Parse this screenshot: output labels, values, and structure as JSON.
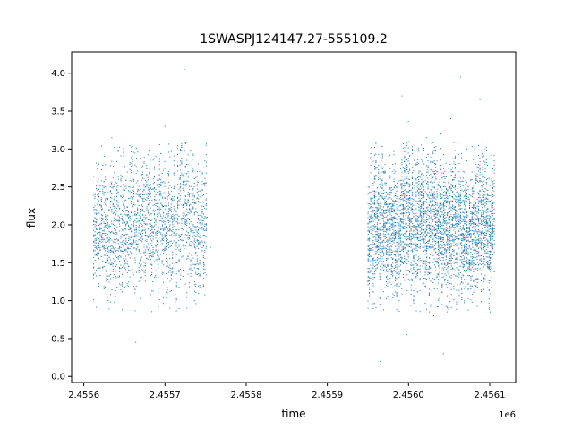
{
  "chart_data": {
    "type": "scatter",
    "title": "1SWASPJ124147.27-555109.2",
    "xlabel": "time",
    "ylabel": "flux",
    "x_offset_label": "1e6",
    "xlim": [
      2455585,
      2456132
    ],
    "ylim": [
      -0.08,
      4.28
    ],
    "x_ticks": [
      2455600,
      2455700,
      2455800,
      2455900,
      2456000,
      2456100
    ],
    "x_tick_labels": [
      "2.4556",
      "2.4557",
      "2.4558",
      "2.4559",
      "2.4560",
      "2.4561"
    ],
    "y_ticks": [
      0.0,
      0.5,
      1.0,
      1.5,
      2.0,
      2.5,
      3.0,
      3.5,
      4.0
    ],
    "y_tick_labels": [
      "0.0",
      "0.5",
      "1.0",
      "1.5",
      "2.0",
      "2.5",
      "3.0",
      "3.5",
      "4.0"
    ],
    "grid": false,
    "marker_color": "#1f77b4",
    "series": [
      {
        "values_xy": [
          [
            2455614,
            2.4
          ],
          [
            2455616,
            1.6
          ],
          [
            2455618,
            2.6
          ],
          [
            2455620,
            1.9
          ],
          [
            2455622,
            2.2
          ],
          [
            2455625,
            1.45
          ],
          [
            2455628,
            2.35
          ],
          [
            2455631,
            1.8
          ],
          [
            2455634,
            2.55
          ],
          [
            2455637,
            2.05
          ],
          [
            2455640,
            1.3
          ],
          [
            2455643,
            2.6
          ],
          [
            2455646,
            1.7
          ],
          [
            2455649,
            2.25
          ],
          [
            2455652,
            1.55
          ],
          [
            2455655,
            2.45
          ],
          [
            2455658,
            1.95
          ],
          [
            2455661,
            2.7
          ],
          [
            2455664,
            0.45
          ],
          [
            2455667,
            1.85
          ],
          [
            2455670,
            2.15
          ],
          [
            2455673,
            1.4
          ],
          [
            2455676,
            2.5
          ],
          [
            2455679,
            1.75
          ],
          [
            2455682,
            2.85
          ],
          [
            2455685,
            1.25
          ],
          [
            2455688,
            2.3
          ],
          [
            2455691,
            1.65
          ],
          [
            2455694,
            2.6
          ],
          [
            2455697,
            2.0
          ],
          [
            2455700,
            3.3
          ],
          [
            2455703,
            1.1
          ],
          [
            2455706,
            2.4
          ],
          [
            2455709,
            1.85
          ],
          [
            2455712,
            2.2
          ],
          [
            2455715,
            1.5
          ],
          [
            2455718,
            2.75
          ],
          [
            2455721,
            1.95
          ],
          [
            2455724,
            4.05
          ],
          [
            2455727,
            0.9
          ],
          [
            2455730,
            2.25
          ],
          [
            2455733,
            1.6
          ],
          [
            2455736,
            2.5
          ],
          [
            2455740,
            1.8
          ],
          [
            2455744,
            2.65
          ],
          [
            2455748,
            1.3
          ],
          [
            2455752,
            2.1
          ],
          [
            2455756,
            1.7
          ],
          [
            2455953,
            2.3
          ],
          [
            2455956,
            1.55
          ],
          [
            2455959,
            2.6
          ],
          [
            2455962,
            1.8
          ],
          [
            2455965,
            0.2
          ],
          [
            2455968,
            2.9
          ],
          [
            2455971,
            1.45
          ],
          [
            2455974,
            2.4
          ],
          [
            2455977,
            1.95
          ],
          [
            2455980,
            2.7
          ],
          [
            2455983,
            1.2
          ],
          [
            2455986,
            2.55
          ],
          [
            2455989,
            1.65
          ],
          [
            2455992,
            3.7
          ],
          [
            2455995,
            2.15
          ],
          [
            2455998,
            0.55
          ],
          [
            2456001,
            2.5
          ],
          [
            2456004,
            1.75
          ],
          [
            2456007,
            2.85
          ],
          [
            2456010,
            1.35
          ],
          [
            2456013,
            2.35
          ],
          [
            2456016,
            1.9
          ],
          [
            2456019,
            2.65
          ],
          [
            2456022,
            3.15
          ],
          [
            2456025,
            1.5
          ],
          [
            2456028,
            2.25
          ],
          [
            2456031,
            0.8
          ],
          [
            2456034,
            2.6
          ],
          [
            2456037,
            1.7
          ],
          [
            2456040,
            2.4
          ],
          [
            2456043,
            0.3
          ],
          [
            2456046,
            2.1
          ],
          [
            2456049,
            1.45
          ],
          [
            2456052,
            3.4
          ],
          [
            2456055,
            2.7
          ],
          [
            2456058,
            1.85
          ],
          [
            2456061,
            2.3
          ],
          [
            2456064,
            3.95
          ],
          [
            2456067,
            1.55
          ],
          [
            2456070,
            2.45
          ],
          [
            2456073,
            0.6
          ],
          [
            2456076,
            2.05
          ],
          [
            2456079,
            1.7
          ],
          [
            2456082,
            2.55
          ],
          [
            2456085,
            1.4
          ],
          [
            2456088,
            3.65
          ],
          [
            2456091,
            2.2
          ],
          [
            2456094,
            1.9
          ],
          [
            2456097,
            2.4
          ],
          [
            2456100,
            1.6
          ],
          [
            2456103,
            2.15
          ],
          [
            2456106,
            1.75
          ]
        ],
        "observing_runs": [
          {
            "t_start": 2455612,
            "t_end": 2455757,
            "flux_mean": 2.0,
            "flux_spread": 0.55,
            "n_points": 2200,
            "seed": 11
          },
          {
            "t_start": 2455950,
            "t_end": 2456107,
            "flux_mean": 2.0,
            "flux_spread": 0.55,
            "n_points": 4200,
            "seed": 29
          }
        ]
      }
    ]
  }
}
